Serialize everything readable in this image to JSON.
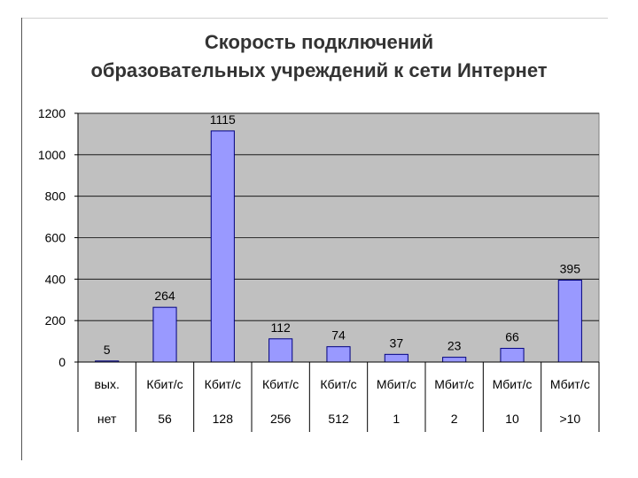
{
  "slide": {
    "title_line1": "Скорость подключений",
    "title_line2": "образовательных учреждений к сети Интернет"
  },
  "chart_data": {
    "type": "bar",
    "categories": [
      [
        "вых.",
        "нет"
      ],
      [
        "Кбит/с",
        "56"
      ],
      [
        "Кбит/с",
        "128"
      ],
      [
        "Кбит/с",
        "256"
      ],
      [
        "Кбит/с",
        "512"
      ],
      [
        "Мбит/с",
        "1"
      ],
      [
        "Мбит/с",
        "2"
      ],
      [
        "Мбит/с",
        "10"
      ],
      [
        "Мбит/с",
        ">10"
      ]
    ],
    "values": [
      5,
      264,
      1115,
      112,
      74,
      37,
      23,
      66,
      395
    ],
    "data_labels": [
      "5",
      "264",
      "1115",
      "112",
      "74",
      "37",
      "23",
      "66",
      "395"
    ],
    "yticks": [
      "0",
      "200",
      "400",
      "600",
      "800",
      "1000",
      "1200"
    ],
    "ylim": [
      0,
      1200
    ],
    "grid": true,
    "legend": "none",
    "colors": {
      "bar_fill": "#9999ff",
      "bar_stroke": "#000080",
      "plot_bg": "#c0c0c0",
      "grid": "#000000"
    }
  }
}
